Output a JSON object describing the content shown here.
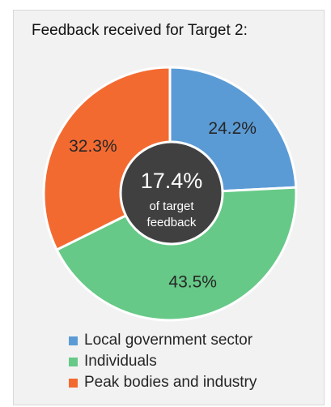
{
  "chart_data": {
    "type": "pie",
    "title": "Feedback received for Target 2:",
    "categories": [
      "Local government sector",
      "Individuals",
      "Peak bodies and industry"
    ],
    "values": [
      24.2,
      43.5,
      32.3
    ],
    "value_labels": [
      "24.2%",
      "43.5%",
      "32.3%"
    ],
    "colors": [
      "#5b9bd5",
      "#66c987",
      "#f36a31"
    ],
    "center_value": "17.4%",
    "center_text": [
      "of target",
      "feedback"
    ],
    "center_color": "#404040",
    "legend_position": "bottom",
    "hole": true
  }
}
